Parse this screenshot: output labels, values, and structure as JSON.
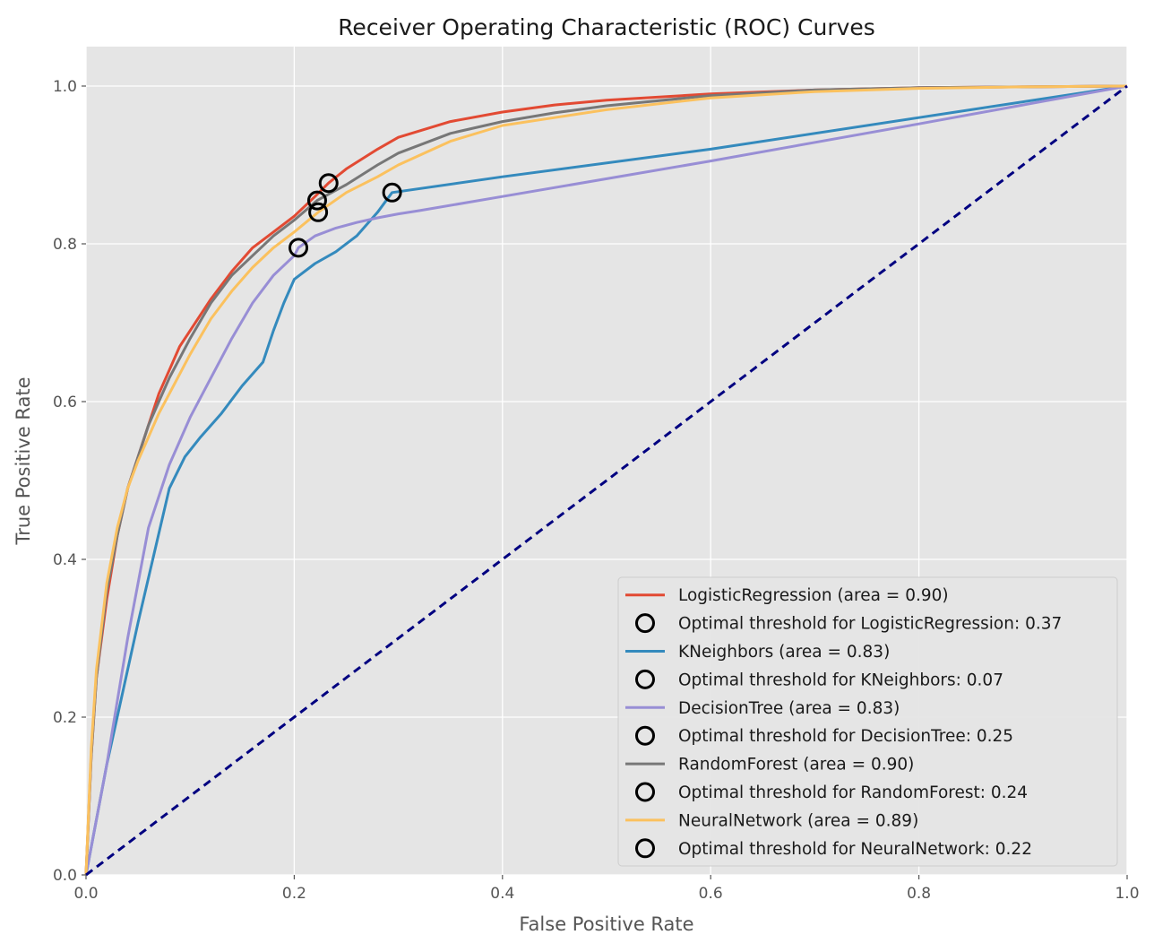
{
  "chart_data": {
    "type": "line",
    "title": "Receiver Operating Characteristic (ROC) Curves",
    "xlabel": "False Positive Rate",
    "ylabel": "True Positive Rate",
    "xlim": [
      0.0,
      1.0
    ],
    "ylim": [
      0.0,
      1.05
    ],
    "xticks": [
      0.0,
      0.2,
      0.4,
      0.6,
      0.8,
      1.0
    ],
    "yticks": [
      0.0,
      0.2,
      0.4,
      0.6,
      0.8,
      1.0
    ],
    "xtick_labels": [
      "0.0",
      "0.2",
      "0.4",
      "0.6",
      "0.8",
      "1.0"
    ],
    "ytick_labels": [
      "0.0",
      "0.2",
      "0.4",
      "0.6",
      "0.8",
      "1.0"
    ],
    "grid": true,
    "legend_position": "lower-right",
    "background": "#E5E5E5",
    "series": [
      {
        "name": "LogisticRegression (area = 0.90)",
        "color": "#E24A33",
        "x": [
          0,
          0.005,
          0.01,
          0.02,
          0.03,
          0.04,
          0.05,
          0.06,
          0.07,
          0.08,
          0.09,
          0.1,
          0.12,
          0.14,
          0.16,
          0.18,
          0.2,
          0.22,
          0.233,
          0.25,
          0.28,
          0.3,
          0.35,
          0.4,
          0.45,
          0.5,
          0.6,
          0.7,
          0.8,
          0.9,
          1.0
        ],
        "y": [
          0,
          0.15,
          0.25,
          0.35,
          0.43,
          0.49,
          0.53,
          0.57,
          0.61,
          0.64,
          0.67,
          0.69,
          0.73,
          0.765,
          0.795,
          0.815,
          0.835,
          0.86,
          0.877,
          0.895,
          0.92,
          0.935,
          0.955,
          0.967,
          0.976,
          0.982,
          0.99,
          0.995,
          0.998,
          0.999,
          1.0
        ]
      },
      {
        "name": "KNeighbors (area = 0.83)",
        "color": "#348ABD",
        "x": [
          0,
          0.02,
          0.05,
          0.08,
          0.095,
          0.11,
          0.13,
          0.15,
          0.17,
          0.18,
          0.19,
          0.2,
          0.22,
          0.24,
          0.26,
          0.28,
          0.294,
          0.4,
          0.6,
          0.8,
          1.0
        ],
        "y": [
          0,
          0.14,
          0.32,
          0.49,
          0.53,
          0.555,
          0.585,
          0.62,
          0.65,
          0.69,
          0.725,
          0.755,
          0.775,
          0.79,
          0.81,
          0.84,
          0.865,
          0.885,
          0.92,
          0.96,
          1.0
        ]
      },
      {
        "name": "DecisionTree (area = 0.83)",
        "color": "#988ED5",
        "x": [
          0,
          0.02,
          0.04,
          0.06,
          0.08,
          0.1,
          0.12,
          0.14,
          0.16,
          0.18,
          0.2,
          0.204,
          0.22,
          0.24,
          0.26,
          0.28,
          0.3,
          0.32,
          0.4,
          0.6,
          0.8,
          1.0
        ],
        "y": [
          0,
          0.14,
          0.3,
          0.44,
          0.52,
          0.58,
          0.63,
          0.68,
          0.725,
          0.76,
          0.785,
          0.795,
          0.81,
          0.82,
          0.827,
          0.833,
          0.838,
          0.842,
          0.86,
          0.905,
          0.952,
          1.0
        ]
      },
      {
        "name": "RandomForest (area = 0.90)",
        "color": "#777777",
        "x": [
          0,
          0.005,
          0.01,
          0.02,
          0.03,
          0.04,
          0.05,
          0.06,
          0.07,
          0.08,
          0.1,
          0.12,
          0.14,
          0.16,
          0.18,
          0.2,
          0.222,
          0.25,
          0.28,
          0.3,
          0.35,
          0.4,
          0.45,
          0.5,
          0.6,
          0.7,
          0.8,
          0.9,
          1.0
        ],
        "y": [
          0,
          0.15,
          0.25,
          0.36,
          0.43,
          0.49,
          0.53,
          0.57,
          0.6,
          0.63,
          0.68,
          0.725,
          0.76,
          0.785,
          0.81,
          0.83,
          0.855,
          0.875,
          0.9,
          0.915,
          0.94,
          0.955,
          0.966,
          0.975,
          0.988,
          0.995,
          0.998,
          0.999,
          1.0
        ]
      },
      {
        "name": "NeuralNetwork (area = 0.89)",
        "color": "#FBC15E",
        "x": [
          0,
          0.005,
          0.01,
          0.02,
          0.03,
          0.04,
          0.05,
          0.06,
          0.07,
          0.08,
          0.1,
          0.12,
          0.14,
          0.16,
          0.18,
          0.2,
          0.223,
          0.25,
          0.28,
          0.3,
          0.35,
          0.4,
          0.45,
          0.5,
          0.6,
          0.7,
          0.8,
          0.9,
          1.0
        ],
        "y": [
          0,
          0.16,
          0.26,
          0.37,
          0.44,
          0.49,
          0.525,
          0.555,
          0.585,
          0.61,
          0.66,
          0.705,
          0.74,
          0.77,
          0.795,
          0.815,
          0.84,
          0.865,
          0.885,
          0.9,
          0.93,
          0.95,
          0.96,
          0.97,
          0.985,
          0.993,
          0.997,
          0.999,
          1.0
        ]
      },
      {
        "name": "",
        "color": "#000080",
        "dashed": true,
        "x": [
          0,
          1
        ],
        "y": [
          0,
          1
        ]
      }
    ],
    "optimal_points": [
      {
        "name": "Optimal threshold for LogisticRegression: 0.37",
        "x": 0.233,
        "y": 0.877
      },
      {
        "name": "Optimal threshold for KNeighbors: 0.07",
        "x": 0.294,
        "y": 0.865
      },
      {
        "name": "Optimal threshold for DecisionTree: 0.25",
        "x": 0.204,
        "y": 0.795
      },
      {
        "name": "Optimal threshold for RandomForest: 0.24",
        "x": 0.222,
        "y": 0.855
      },
      {
        "name": "Optimal threshold for NeuralNetwork: 0.22",
        "x": 0.223,
        "y": 0.84
      }
    ],
    "legend": [
      {
        "label": "LogisticRegression (area = 0.90)",
        "kind": "line",
        "color": "#E24A33"
      },
      {
        "label": "Optimal threshold for LogisticRegression: 0.37",
        "kind": "marker"
      },
      {
        "label": "KNeighbors (area = 0.83)",
        "kind": "line",
        "color": "#348ABD"
      },
      {
        "label": "Optimal threshold for KNeighbors: 0.07",
        "kind": "marker"
      },
      {
        "label": "DecisionTree (area = 0.83)",
        "kind": "line",
        "color": "#988ED5"
      },
      {
        "label": "Optimal threshold for DecisionTree: 0.25",
        "kind": "marker"
      },
      {
        "label": "RandomForest (area = 0.90)",
        "kind": "line",
        "color": "#777777"
      },
      {
        "label": "Optimal threshold for RandomForest: 0.24",
        "kind": "marker"
      },
      {
        "label": "NeuralNetwork (area = 0.89)",
        "kind": "line",
        "color": "#FBC15E"
      },
      {
        "label": "Optimal threshold for NeuralNetwork: 0.22",
        "kind": "marker"
      }
    ]
  }
}
